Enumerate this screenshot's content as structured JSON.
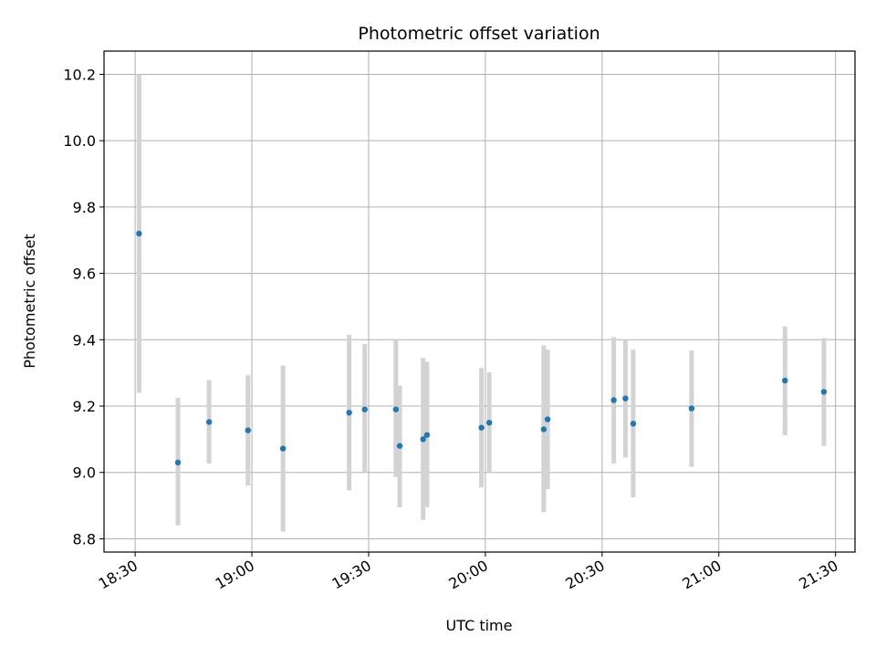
{
  "chart_data": {
    "type": "scatter",
    "title": "Photometric offset variation",
    "xlabel": "UTC time",
    "ylabel": "Photometric offset",
    "x_ticks": [
      "18:30",
      "19:00",
      "19:30",
      "20:00",
      "20:30",
      "21:00",
      "21:30"
    ],
    "x_tick_minutes": [
      0,
      30,
      60,
      90,
      120,
      150,
      180
    ],
    "xlim": [
      "18:22",
      "21:35"
    ],
    "y_ticks": [
      "8.8",
      "9.0",
      "9.2",
      "9.4",
      "9.6",
      "9.8",
      "10.0",
      "10.2"
    ],
    "y_tick_values": [
      8.8,
      9.0,
      9.2,
      9.4,
      9.6,
      9.8,
      10.0,
      10.2
    ],
    "ylim": [
      8.76,
      10.27
    ],
    "grid": true,
    "marker_color": "#1f77b4",
    "errorbar_color": "#d3d3d3",
    "points": [
      {
        "time": "18:31",
        "value": 9.72,
        "low": 9.24,
        "high": 10.2
      },
      {
        "time": "18:41",
        "value": 9.03,
        "low": 8.84,
        "high": 9.225
      },
      {
        "time": "18:49",
        "value": 9.152,
        "low": 9.027,
        "high": 9.278
      },
      {
        "time": "18:59",
        "value": 9.127,
        "low": 8.96,
        "high": 9.293
      },
      {
        "time": "19:08",
        "value": 9.072,
        "low": 8.822,
        "high": 9.322
      },
      {
        "time": "19:25",
        "value": 9.18,
        "low": 8.946,
        "high": 9.415
      },
      {
        "time": "19:29",
        "value": 9.19,
        "low": 9.0,
        "high": 9.387
      },
      {
        "time": "19:37",
        "value": 9.19,
        "low": 8.987,
        "high": 9.4
      },
      {
        "time": "19:38",
        "value": 9.08,
        "low": 8.895,
        "high": 9.262
      },
      {
        "time": "19:44",
        "value": 9.1,
        "low": 8.857,
        "high": 9.345
      },
      {
        "time": "19:45",
        "value": 9.113,
        "low": 8.895,
        "high": 9.333
      },
      {
        "time": "19:59",
        "value": 9.135,
        "low": 8.955,
        "high": 9.315
      },
      {
        "time": "20:01",
        "value": 9.15,
        "low": 9.0,
        "high": 9.302
      },
      {
        "time": "20:15",
        "value": 9.13,
        "low": 8.88,
        "high": 9.383
      },
      {
        "time": "20:16",
        "value": 9.16,
        "low": 8.95,
        "high": 9.37
      },
      {
        "time": "20:33",
        "value": 9.218,
        "low": 9.027,
        "high": 9.408
      },
      {
        "time": "20:36",
        "value": 9.223,
        "low": 9.045,
        "high": 9.4
      },
      {
        "time": "20:38",
        "value": 9.147,
        "low": 8.925,
        "high": 9.37
      },
      {
        "time": "20:53",
        "value": 9.193,
        "low": 9.017,
        "high": 9.367
      },
      {
        "time": "21:17",
        "value": 9.277,
        "low": 9.112,
        "high": 9.44
      },
      {
        "time": "21:27",
        "value": 9.243,
        "low": 9.08,
        "high": 9.405
      }
    ]
  }
}
